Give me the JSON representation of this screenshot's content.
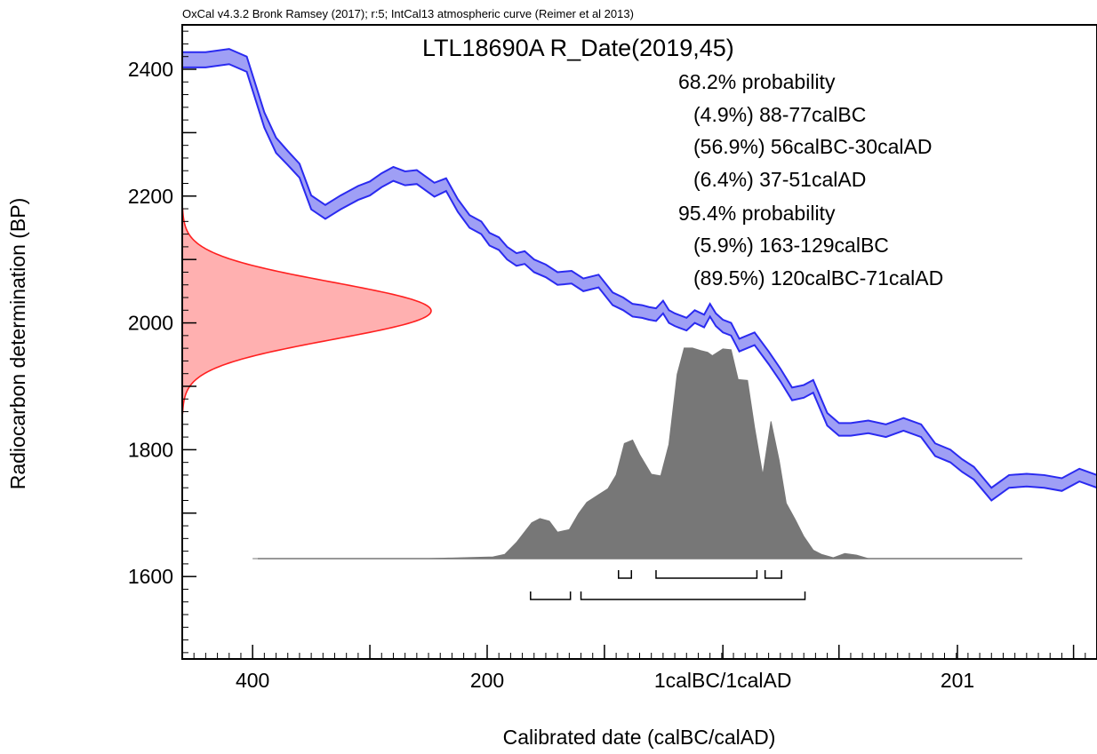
{
  "chart_data": {
    "type": "area",
    "subtitle": "OxCal v4.3.2 Bronk Ramsey (2017); r:5; IntCal13 atmospheric curve (Reimer et al 2013)",
    "title": "LTL18690A R_Date(2019,45)",
    "xlabel": "Calibrated date (calBC/calAD)",
    "ylabel": "Radiocarbon determination (BP)",
    "xlim": [
      -460,
      320
    ],
    "ylim": [
      1470,
      2470
    ],
    "x_ticks": [
      -400,
      -300,
      -200,
      -100,
      1,
      100,
      201,
      300
    ],
    "x_tick_labels": [
      {
        "x": -400,
        "label": "400"
      },
      {
        "x": -200,
        "label": "200"
      },
      {
        "x": 1,
        "label": "1calBC/1calAD"
      },
      {
        "x": 201,
        "label": "201"
      }
    ],
    "y_ticks": [
      1600,
      1700,
      1800,
      1900,
      2000,
      2100,
      2200,
      2300,
      2400
    ],
    "y_tick_labels": [
      {
        "y": 2400,
        "label": "2400"
      },
      {
        "y": 2200,
        "label": "2200"
      },
      {
        "y": 2000,
        "label": "2000"
      },
      {
        "y": 1800,
        "label": "1800"
      },
      {
        "y": 1600,
        "label": "1600"
      }
    ],
    "annotations": [
      "68.2% probability",
      "(4.9%) 88-77calBC",
      "(56.9%) 56calBC-30calAD",
      "(6.4%) 37-51calAD",
      "95.4% probability",
      "(5.9%) 163-129calBC",
      "(89.5%) 120calBC-71calAD"
    ],
    "calibration_curve": {
      "x": [
        -460,
        -440,
        -420,
        -405,
        -390,
        -380,
        -370,
        -360,
        -350,
        -338,
        -325,
        -310,
        -300,
        -290,
        -280,
        -270,
        -260,
        -245,
        -235,
        -225,
        -215,
        -205,
        -198,
        -190,
        -183,
        -175,
        -168,
        -160,
        -150,
        -140,
        -128,
        -118,
        -105,
        -93,
        -84,
        -76,
        -68,
        -62,
        -56,
        -50,
        -45,
        -40,
        -30,
        -23,
        -15,
        -10,
        -5,
        1,
        8,
        15,
        28,
        40,
        50,
        60,
        70,
        78,
        90,
        100,
        110,
        125,
        140,
        155,
        170,
        182,
        195,
        205,
        215,
        230,
        245,
        260,
        275,
        290,
        305,
        320
      ],
      "y": [
        2415,
        2415,
        2420,
        2408,
        2320,
        2280,
        2260,
        2240,
        2190,
        2175,
        2190,
        2205,
        2212,
        2225,
        2235,
        2228,
        2230,
        2210,
        2218,
        2185,
        2160,
        2150,
        2132,
        2125,
        2110,
        2100,
        2103,
        2090,
        2082,
        2070,
        2072,
        2060,
        2066,
        2038,
        2030,
        2020,
        2018,
        2015,
        2013,
        2025,
        2010,
        2005,
        1998,
        2010,
        2003,
        2020,
        2005,
        1995,
        1990,
        1965,
        1975,
        1945,
        1918,
        1888,
        1892,
        1900,
        1848,
        1832,
        1832,
        1836,
        1830,
        1840,
        1830,
        1800,
        1790,
        1775,
        1763,
        1730,
        1750,
        1752,
        1750,
        1745,
        1760,
        1750
      ],
      "sigma": [
        12,
        12,
        12,
        12,
        12,
        12,
        11,
        11,
        11,
        11,
        11,
        11,
        11,
        11,
        11,
        11,
        11,
        11,
        10,
        10,
        10,
        10,
        10,
        10,
        10,
        10,
        10,
        10,
        10,
        10,
        10,
        10,
        10,
        10,
        10,
        10,
        10,
        10,
        10,
        10,
        10,
        10,
        10,
        10,
        10,
        10,
        10,
        10,
        10,
        10,
        10,
        10,
        10,
        10,
        10,
        10,
        10,
        10,
        10,
        10,
        10,
        10,
        10,
        10,
        10,
        10,
        10,
        10,
        10,
        10,
        10,
        10,
        10,
        10
      ]
    },
    "radiocarbon_distribution": {
      "mean": 2019,
      "sigma": 45
    },
    "calibrated_distribution": {
      "x": [
        -400,
        -250,
        -195,
        -185,
        -175,
        -162,
        -155,
        -147,
        -140,
        -130,
        -122,
        -115,
        -105,
        -97,
        -90,
        -83,
        -76,
        -70,
        -60,
        -52,
        -45,
        -38,
        -32,
        -25,
        -18,
        -12,
        -8,
        1,
        8,
        14,
        22,
        28,
        35,
        42,
        49,
        55,
        63,
        70,
        78,
        85,
        95,
        105,
        115,
        125,
        160
      ],
      "y": [
        0,
        0,
        0.02,
        0.05,
        0.19,
        0.42,
        0.47,
        0.44,
        0.31,
        0.34,
        0.53,
        0.66,
        0.75,
        0.82,
        0.98,
        1.35,
        1.39,
        1.22,
        0.99,
        0.97,
        1.34,
        2.16,
        2.47,
        2.47,
        2.44,
        2.42,
        2.38,
        2.46,
        2.45,
        2.1,
        2.09,
        1.54,
        0.98,
        1.61,
        1.15,
        0.65,
        0.45,
        0.26,
        0.1,
        0.05,
        0.01,
        0.06,
        0.04,
        0,
        0
      ]
    },
    "range_brackets": {
      "sigma1": [
        [
          -88,
          -77
        ],
        [
          -56,
          30
        ],
        [
          37,
          51
        ]
      ],
      "sigma2": [
        [
          -163,
          -129
        ],
        [
          -120,
          71
        ]
      ]
    }
  }
}
